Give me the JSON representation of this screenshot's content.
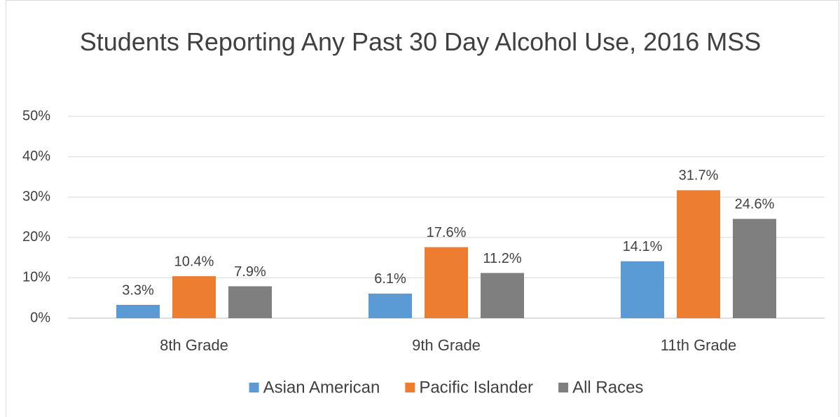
{
  "chart_data": {
    "type": "bar",
    "title": "Students Reporting Any Past 30 Day Alcohol Use, 2016 MSS",
    "categories": [
      "8th Grade",
      "9th Grade",
      "11th Grade"
    ],
    "series": [
      {
        "name": "Asian American",
        "color": "#5b9bd5",
        "values": [
          3.3,
          6.1,
          14.1
        ],
        "value_labels": [
          "3.3%",
          "6.1%",
          "14.1%"
        ]
      },
      {
        "name": "Pacific Islander",
        "color": "#ed7d31",
        "values": [
          10.4,
          17.6,
          31.7
        ],
        "value_labels": [
          "10.4%",
          "17.6%",
          "31.7%"
        ]
      },
      {
        "name": "All Races",
        "color": "#7f7f7f",
        "values": [
          7.9,
          11.2,
          24.6
        ],
        "value_labels": [
          "7.9%",
          "11.2%",
          "24.6%"
        ]
      }
    ],
    "ylim": [
      0,
      50
    ],
    "yticks": [
      {
        "value": 0,
        "label": "0%"
      },
      {
        "value": 10,
        "label": "10%"
      },
      {
        "value": 20,
        "label": "20%"
      },
      {
        "value": 30,
        "label": "30%"
      },
      {
        "value": 40,
        "label": "40%"
      },
      {
        "value": 50,
        "label": "50%"
      }
    ],
    "grid": true,
    "legend": "bottom"
  }
}
